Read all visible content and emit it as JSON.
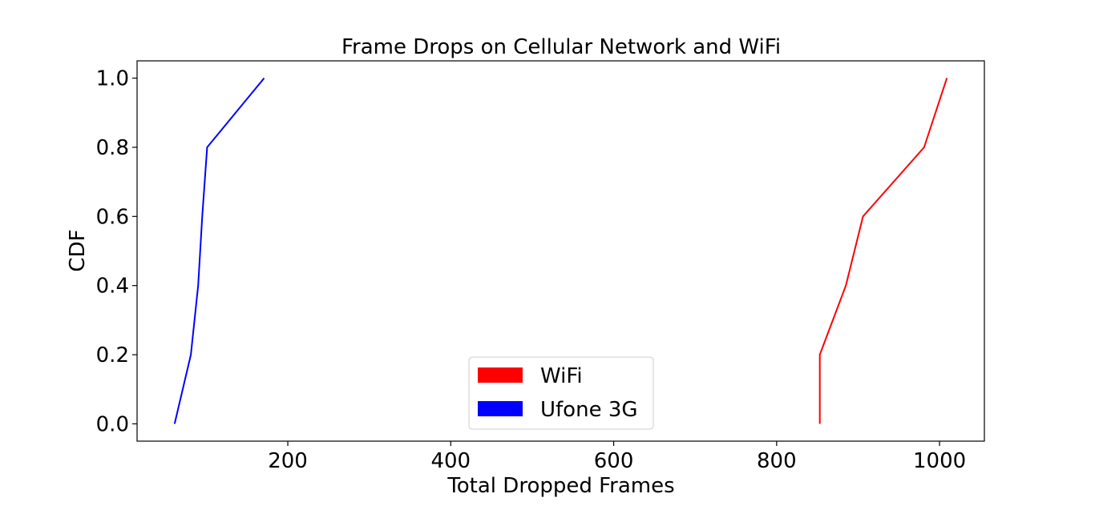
{
  "chart_data": {
    "type": "line",
    "title": "Frame Drops on Cellular Network and WiFi",
    "xlabel": "Total Dropped Frames",
    "ylabel": "CDF",
    "xlim": [
      15,
      1055
    ],
    "ylim": [
      -0.05,
      1.05
    ],
    "xticks": [
      200,
      400,
      600,
      800,
      1000
    ],
    "xtick_labels": [
      "200",
      "400",
      "600",
      "800",
      "1000"
    ],
    "yticks": [
      0.0,
      0.2,
      0.4,
      0.6,
      0.8,
      1.0
    ],
    "ytick_labels": [
      "0.0",
      "0.2",
      "0.4",
      "0.6",
      "0.8",
      "1.0"
    ],
    "grid": false,
    "legend_position": "lower-center",
    "series": [
      {
        "name": "WiFi",
        "color": "#ff0000",
        "x": [
          853,
          853,
          885,
          906,
          981,
          1009
        ],
        "y": [
          0.0,
          0.2,
          0.4,
          0.6,
          0.8,
          1.0
        ]
      },
      {
        "name": "Ufone 3G",
        "color": "#0000ff",
        "x": [
          61,
          81,
          90,
          95,
          101,
          171
        ],
        "y": [
          0.0,
          0.2,
          0.4,
          0.6,
          0.8,
          1.0
        ]
      }
    ]
  }
}
